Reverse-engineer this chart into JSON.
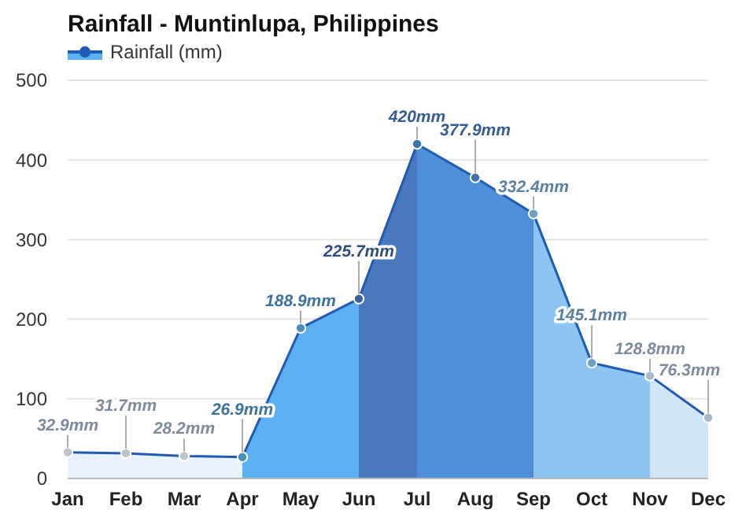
{
  "chart_data": {
    "type": "area",
    "title": "Rainfall - Muntinlupa, Philippines",
    "categories": [
      "Jan",
      "Feb",
      "Mar",
      "Apr",
      "May",
      "Jun",
      "Jul",
      "Aug",
      "Sep",
      "Oct",
      "Nov",
      "Dec"
    ],
    "series": [
      {
        "name": "Rainfall (mm)",
        "color": "#1f5bb5",
        "values": [
          32.9,
          31.7,
          28.2,
          26.9,
          188.9,
          225.7,
          420,
          377.9,
          332.4,
          145.1,
          128.8,
          76.3
        ],
        "colors": [
          "#e8f2fc",
          "#e8f2fc",
          "#e8f2fc",
          "#5ab0f0",
          "#5ab0f0",
          "#4a78bf",
          "#4f8fd8",
          "#4f8fd8",
          "#8cc4f2",
          "#8cc4f2",
          "#cfe5f8",
          "#cfe5f8"
        ],
        "value_labels": [
          "32.9mm",
          "31.7mm",
          "28.2mm",
          "26.9mm",
          "188.9mm",
          "225.7mm",
          "420mm",
          "377.9mm",
          "332.4mm",
          "145.1mm",
          "128.8mm",
          "76.3mm"
        ]
      }
    ],
    "ylim": [
      0,
      500
    ],
    "yticks": [
      0,
      100,
      200,
      300,
      400,
      500
    ],
    "grid": "y",
    "legend": "top left",
    "marker": "circle"
  }
}
